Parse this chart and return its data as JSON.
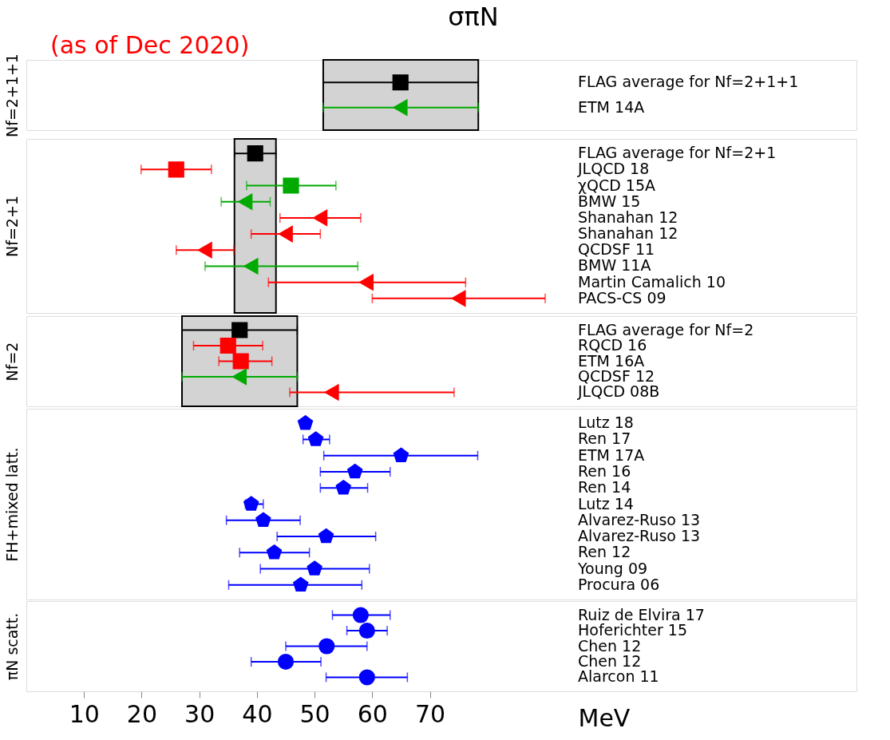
{
  "chart_data": [
    {
      "type": "scatter",
      "orientation": "horizontal",
      "title": "σπN",
      "annotations": [
        "(as of Dec 2020)"
      ],
      "ylabel": "Nf=2+1+1",
      "xlim": [
        0,
        144
      ],
      "tick_labels": "y",
      "grid": false,
      "categories": [
        "FLAG average for Nf=2+1+1",
        "ETM 14A"
      ],
      "bands": [
        {
          "axis": "x",
          "from": 51.5,
          "to": 78.4,
          "color": "#d3d3d3"
        }
      ],
      "series": [
        {
          "color": "#000000",
          "marker": "square",
          "values": [
            64.9,
            null
          ],
          "errors": [
            [
              51.5,
              78.4
            ],
            null
          ]
        },
        {
          "color": "#00aa00",
          "marker": "triangle-left",
          "values": [
            null,
            64.9
          ],
          "errors": [
            null,
            [
              51.5,
              78.4
            ]
          ]
        }
      ]
    },
    {
      "type": "scatter",
      "orientation": "horizontal",
      "ylabel": "Nf=2+1",
      "xlim": [
        0,
        144
      ],
      "tick_labels": "y",
      "grid": false,
      "categories": [
        "FLAG average for Nf=2+1",
        "JLQCD 18",
        "χQCD 15A",
        "BMW 15",
        "Shanahan 12",
        "Shanahan 12",
        "QCDSF 11",
        "BMW 11A",
        "Martin Camalich 10",
        "PACS-CS 09"
      ],
      "bands": [
        {
          "axis": "x",
          "from": 36.1,
          "to": 43.3,
          "color": "#d3d3d3"
        }
      ],
      "series": [
        {
          "color": "#000000",
          "marker": "square",
          "values": [
            39.7,
            null,
            null,
            null,
            null,
            null,
            null,
            null,
            null,
            null
          ],
          "errors": [
            [
              36.1,
              43.3
            ],
            null,
            null,
            null,
            null,
            null,
            null,
            null,
            null,
            null
          ]
        },
        {
          "color": "#ff0000",
          "marker": "square",
          "values": [
            null,
            26,
            null,
            null,
            null,
            null,
            null,
            null,
            null,
            null
          ],
          "errors": [
            null,
            [
              19.9,
              32.1
            ],
            null,
            null,
            null,
            null,
            null,
            null,
            null,
            null
          ]
        },
        {
          "color": "#00aa00",
          "marker": "square",
          "values": [
            null,
            null,
            45.9,
            null,
            null,
            null,
            null,
            null,
            null,
            null
          ],
          "errors": [
            null,
            null,
            [
              38.2,
              53.7
            ],
            null,
            null,
            null,
            null,
            null,
            null,
            null
          ]
        },
        {
          "color": "#00aa00",
          "marker": "triangle-left",
          "values": [
            null,
            null,
            null,
            38,
            null,
            null,
            null,
            39,
            null,
            null
          ],
          "errors": [
            null,
            null,
            null,
            [
              33.8,
              42.3
            ],
            null,
            null,
            null,
            [
              31,
              57.5
            ],
            null,
            null
          ]
        },
        {
          "color": "#ff0000",
          "marker": "triangle-left",
          "values": [
            null,
            null,
            null,
            null,
            51,
            45,
            31,
            null,
            59,
            75
          ],
          "errors": [
            null,
            null,
            null,
            null,
            [
              44,
              58
            ],
            [
              39,
              51
            ],
            [
              26,
              36
            ],
            null,
            [
              42,
              76.2
            ],
            [
              60,
              90
            ]
          ]
        }
      ]
    },
    {
      "type": "scatter",
      "orientation": "horizontal",
      "ylabel": "Nf=2",
      "xlim": [
        0,
        144
      ],
      "tick_labels": "y",
      "grid": false,
      "categories": [
        "FLAG average for Nf=2",
        "RQCD 16",
        "ETM 16A",
        "QCDSF 12",
        "JLQCD 08B"
      ],
      "bands": [
        {
          "axis": "x",
          "from": 27,
          "to": 47,
          "color": "#d3d3d3"
        }
      ],
      "series": [
        {
          "color": "#000000",
          "marker": "square",
          "values": [
            37,
            null,
            null,
            null,
            null
          ],
          "errors": [
            [
              27,
              47
            ],
            null,
            null,
            null,
            null
          ]
        },
        {
          "color": "#ff0000",
          "marker": "square",
          "values": [
            null,
            35,
            37.2,
            null,
            null
          ],
          "errors": [
            null,
            [
              29,
              41
            ],
            [
              33.4,
              42.6
            ],
            null,
            null
          ]
        },
        {
          "color": "#00aa00",
          "marker": "triangle-left",
          "values": [
            null,
            null,
            null,
            37,
            null
          ],
          "errors": [
            null,
            null,
            null,
            [
              27,
              47
            ],
            null
          ]
        },
        {
          "color": "#ff0000",
          "marker": "triangle-left",
          "values": [
            null,
            null,
            null,
            null,
            53
          ],
          "errors": [
            null,
            null,
            null,
            null,
            [
              45.7,
              74.2
            ]
          ]
        }
      ]
    },
    {
      "type": "scatter",
      "orientation": "horizontal",
      "ylabel": "FH+mixed latt.",
      "xlim": [
        0,
        144
      ],
      "tick_labels": "y",
      "grid": false,
      "categories": [
        "Lutz 18",
        "Ren 17",
        "ETM 17A",
        "Ren 16",
        "Ren 14",
        "Lutz 14",
        "Alvarez-Ruso 13",
        "Alvarez-Ruso 13",
        "Ren 12",
        "Young 09",
        "Procura 06"
      ],
      "series": [
        {
          "color": "#0000ff",
          "values": [
            48.4,
            50.2,
            65,
            57,
            55,
            39,
            41.1,
            52,
            43,
            50,
            47.6
          ],
          "errors": [
            null,
            [
              48,
              52.6
            ],
            [
              51.6,
              78.3
            ],
            [
              51,
              63.1
            ],
            [
              51,
              59.2
            ],
            [
              38,
              41.1
            ],
            [
              34.7,
              47.5
            ],
            [
              43.5,
              60.6
            ],
            [
              37,
              49.1
            ],
            [
              40.6,
              59.5
            ],
            [
              35.1,
              58.2
            ]
          ]
        }
      ]
    },
    {
      "type": "scatter",
      "orientation": "horizontal",
      "ylabel": "πN scatt.",
      "xlabel": "MeV",
      "xlim": [
        0,
        144
      ],
      "xticks": [
        10,
        20,
        30,
        40,
        50,
        60,
        70
      ],
      "grid": false,
      "categories": [
        "Ruiz de Elvira 17",
        "Hoferichter 15",
        "Chen 12",
        "Chen 12",
        "Alarcon 11"
      ],
      "series": [
        {
          "color": "#0000ff",
          "marker": "circle",
          "values": [
            58,
            59.1,
            52.1,
            45,
            59.1
          ],
          "errors": [
            [
              53.1,
              63.1
            ],
            [
              55.6,
              62.6
            ],
            [
              45,
              59.1
            ],
            [
              39,
              51.1
            ],
            [
              52,
              66.1
            ]
          ]
        }
      ]
    }
  ]
}
